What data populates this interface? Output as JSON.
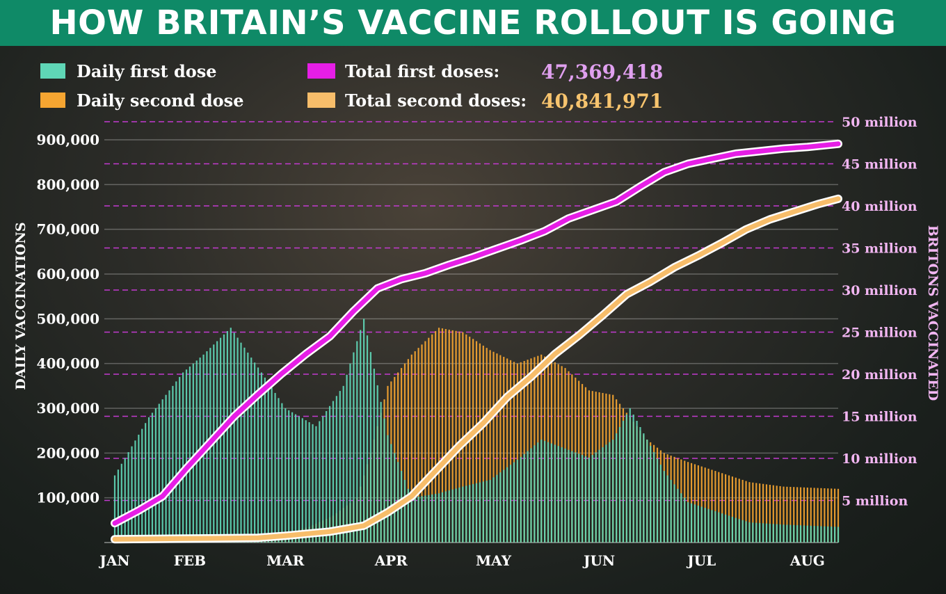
{
  "banner": {
    "title": "HOW BRITAIN’S VACCINE ROLLOUT IS GOING"
  },
  "legend": {
    "daily_first": "Daily first dose",
    "daily_second": "Daily second dose",
    "total_first": "Total first doses:",
    "total_second": "Total second doses:",
    "total_first_value": "47,369,418",
    "total_second_value": "40,841,971"
  },
  "colors": {
    "daily_first": "#5fd6b6",
    "daily_second": "#f5a531",
    "total_first": "#e61ee6",
    "total_second": "#f7bd6a",
    "total_first_value": "#e0a0ef",
    "total_second_value": "#f7c46e",
    "right_axis": "#f2b6f2",
    "grid_right": "#c33ad0",
    "banner": "#0f8a67"
  },
  "chart_data": {
    "type": "bar",
    "title": "HOW BRITAIN’S VACCINE ROLLOUT IS GOING",
    "xlabel": "",
    "ylabel": "DAILY VACCINATIONS",
    "ylabel_right": "BRITONS VACCINATED",
    "x_range": [
      "2021-01-10",
      "2021-08-10"
    ],
    "x_ticks": [
      {
        "label": "JAN",
        "date": "2021-01-10"
      },
      {
        "label": "FEB",
        "date": "2021-02-01"
      },
      {
        "label": "MAR",
        "date": "2021-03-01"
      },
      {
        "label": "APR",
        "date": "2021-04-01"
      },
      {
        "label": "MAY",
        "date": "2021-05-01"
      },
      {
        "label": "JUN",
        "date": "2021-06-01"
      },
      {
        "label": "JUL",
        "date": "2021-07-01"
      },
      {
        "label": "AUG",
        "date": "2021-08-01"
      }
    ],
    "ylim": [
      0,
      900000
    ],
    "y_ticks": [
      {
        "value": 100000,
        "label": "100,000"
      },
      {
        "value": 200000,
        "label": "200,000"
      },
      {
        "value": 300000,
        "label": "300,000"
      },
      {
        "value": 400000,
        "label": "400,000"
      },
      {
        "value": 500000,
        "label": "500,000"
      },
      {
        "value": 600000,
        "label": "600,000"
      },
      {
        "value": 700000,
        "label": "700,000"
      },
      {
        "value": 800000,
        "label": "800,000"
      },
      {
        "value": 900000,
        "label": "900,000"
      }
    ],
    "ylim_right": [
      0,
      50000000
    ],
    "y_ticks_right": [
      {
        "value": 5000000,
        "label": "5 million"
      },
      {
        "value": 10000000,
        "label": "10 million"
      },
      {
        "value": 15000000,
        "label": "15 million"
      },
      {
        "value": 20000000,
        "label": "20 million"
      },
      {
        "value": 25000000,
        "label": "25 million"
      },
      {
        "value": 30000000,
        "label": "30 million"
      },
      {
        "value": 35000000,
        "label": "35 million"
      },
      {
        "value": 40000000,
        "label": "40 million"
      },
      {
        "value": 45000000,
        "label": "45 million"
      },
      {
        "value": 50000000,
        "label": "50 million"
      }
    ],
    "bar_series": [
      {
        "name": "Daily first dose",
        "points": [
          [
            "2021-01-10",
            150000
          ],
          [
            "2021-01-20",
            280000
          ],
          [
            "2021-01-30",
            380000
          ],
          [
            "2021-02-05",
            420000
          ],
          [
            "2021-02-13",
            480000
          ],
          [
            "2021-02-22",
            380000
          ],
          [
            "2021-03-01",
            300000
          ],
          [
            "2021-03-10",
            260000
          ],
          [
            "2021-03-18",
            350000
          ],
          [
            "2021-03-24",
            500000
          ],
          [
            "2021-03-31",
            240000
          ],
          [
            "2021-04-07",
            100000
          ],
          [
            "2021-04-15",
            110000
          ],
          [
            "2021-04-22",
            125000
          ],
          [
            "2021-04-30",
            140000
          ],
          [
            "2021-05-08",
            185000
          ],
          [
            "2021-05-15",
            230000
          ],
          [
            "2021-05-22",
            210000
          ],
          [
            "2021-05-29",
            190000
          ],
          [
            "2021-06-05",
            230000
          ],
          [
            "2021-06-10",
            300000
          ],
          [
            "2021-06-15",
            230000
          ],
          [
            "2021-06-20",
            160000
          ],
          [
            "2021-06-27",
            90000
          ],
          [
            "2021-07-05",
            70000
          ],
          [
            "2021-07-15",
            45000
          ],
          [
            "2021-07-25",
            40000
          ],
          [
            "2021-08-10",
            35000
          ]
        ]
      },
      {
        "name": "Daily second dose",
        "points": [
          [
            "2021-01-10",
            15000
          ],
          [
            "2021-01-20",
            12000
          ],
          [
            "2021-01-30",
            13000
          ],
          [
            "2021-02-05",
            10000
          ],
          [
            "2021-02-13",
            8000
          ],
          [
            "2021-02-22",
            12000
          ],
          [
            "2021-03-01",
            20000
          ],
          [
            "2021-03-08",
            35000
          ],
          [
            "2021-03-15",
            60000
          ],
          [
            "2021-03-22",
            100000
          ],
          [
            "2021-03-26",
            200000
          ],
          [
            "2021-03-31",
            350000
          ],
          [
            "2021-04-07",
            420000
          ],
          [
            "2021-04-15",
            480000
          ],
          [
            "2021-04-22",
            470000
          ],
          [
            "2021-04-30",
            430000
          ],
          [
            "2021-05-08",
            400000
          ],
          [
            "2021-05-15",
            420000
          ],
          [
            "2021-05-22",
            390000
          ],
          [
            "2021-05-29",
            340000
          ],
          [
            "2021-06-05",
            330000
          ],
          [
            "2021-06-10",
            280000
          ],
          [
            "2021-06-15",
            230000
          ],
          [
            "2021-06-20",
            200000
          ],
          [
            "2021-06-27",
            180000
          ],
          [
            "2021-07-05",
            160000
          ],
          [
            "2021-07-15",
            135000
          ],
          [
            "2021-07-25",
            125000
          ],
          [
            "2021-08-10",
            120000
          ]
        ]
      }
    ],
    "line_series": [
      {
        "name": "Total first doses",
        "points": [
          [
            "2021-01-10",
            2300000
          ],
          [
            "2021-01-17",
            3800000
          ],
          [
            "2021-01-24",
            5500000
          ],
          [
            "2021-01-31",
            8800000
          ],
          [
            "2021-02-07",
            11900000
          ],
          [
            "2021-02-14",
            15000000
          ],
          [
            "2021-02-21",
            17600000
          ],
          [
            "2021-02-28",
            20100000
          ],
          [
            "2021-03-07",
            22400000
          ],
          [
            "2021-03-14",
            24500000
          ],
          [
            "2021-03-21",
            27500000
          ],
          [
            "2021-03-28",
            30200000
          ],
          [
            "2021-04-04",
            31300000
          ],
          [
            "2021-04-11",
            32000000
          ],
          [
            "2021-04-18",
            33000000
          ],
          [
            "2021-04-25",
            33900000
          ],
          [
            "2021-05-02",
            34900000
          ],
          [
            "2021-05-09",
            35900000
          ],
          [
            "2021-05-16",
            37000000
          ],
          [
            "2021-05-23",
            38500000
          ],
          [
            "2021-05-30",
            39500000
          ],
          [
            "2021-06-06",
            40500000
          ],
          [
            "2021-06-13",
            42300000
          ],
          [
            "2021-06-20",
            44000000
          ],
          [
            "2021-06-27",
            45000000
          ],
          [
            "2021-07-04",
            45600000
          ],
          [
            "2021-07-11",
            46200000
          ],
          [
            "2021-07-18",
            46500000
          ],
          [
            "2021-07-25",
            46800000
          ],
          [
            "2021-08-01",
            47000000
          ],
          [
            "2021-08-10",
            47369418
          ]
        ]
      },
      {
        "name": "Total second doses",
        "points": [
          [
            "2021-01-10",
            400000
          ],
          [
            "2021-01-24",
            450000
          ],
          [
            "2021-02-07",
            500000
          ],
          [
            "2021-02-21",
            560000
          ],
          [
            "2021-03-01",
            800000
          ],
          [
            "2021-03-14",
            1300000
          ],
          [
            "2021-03-24",
            2000000
          ],
          [
            "2021-03-31",
            3600000
          ],
          [
            "2021-04-07",
            5500000
          ],
          [
            "2021-04-14",
            8500000
          ],
          [
            "2021-04-21",
            11500000
          ],
          [
            "2021-04-28",
            14200000
          ],
          [
            "2021-05-05",
            17300000
          ],
          [
            "2021-05-12",
            19700000
          ],
          [
            "2021-05-19",
            22400000
          ],
          [
            "2021-05-26",
            24600000
          ],
          [
            "2021-06-02",
            27000000
          ],
          [
            "2021-06-09",
            29500000
          ],
          [
            "2021-06-16",
            31000000
          ],
          [
            "2021-06-23",
            32700000
          ],
          [
            "2021-06-30",
            34100000
          ],
          [
            "2021-07-07",
            35600000
          ],
          [
            "2021-07-14",
            37200000
          ],
          [
            "2021-07-21",
            38400000
          ],
          [
            "2021-07-28",
            39300000
          ],
          [
            "2021-08-04",
            40200000
          ],
          [
            "2021-08-10",
            40841971
          ]
        ]
      }
    ],
    "grid": true,
    "legend_position": "top"
  }
}
